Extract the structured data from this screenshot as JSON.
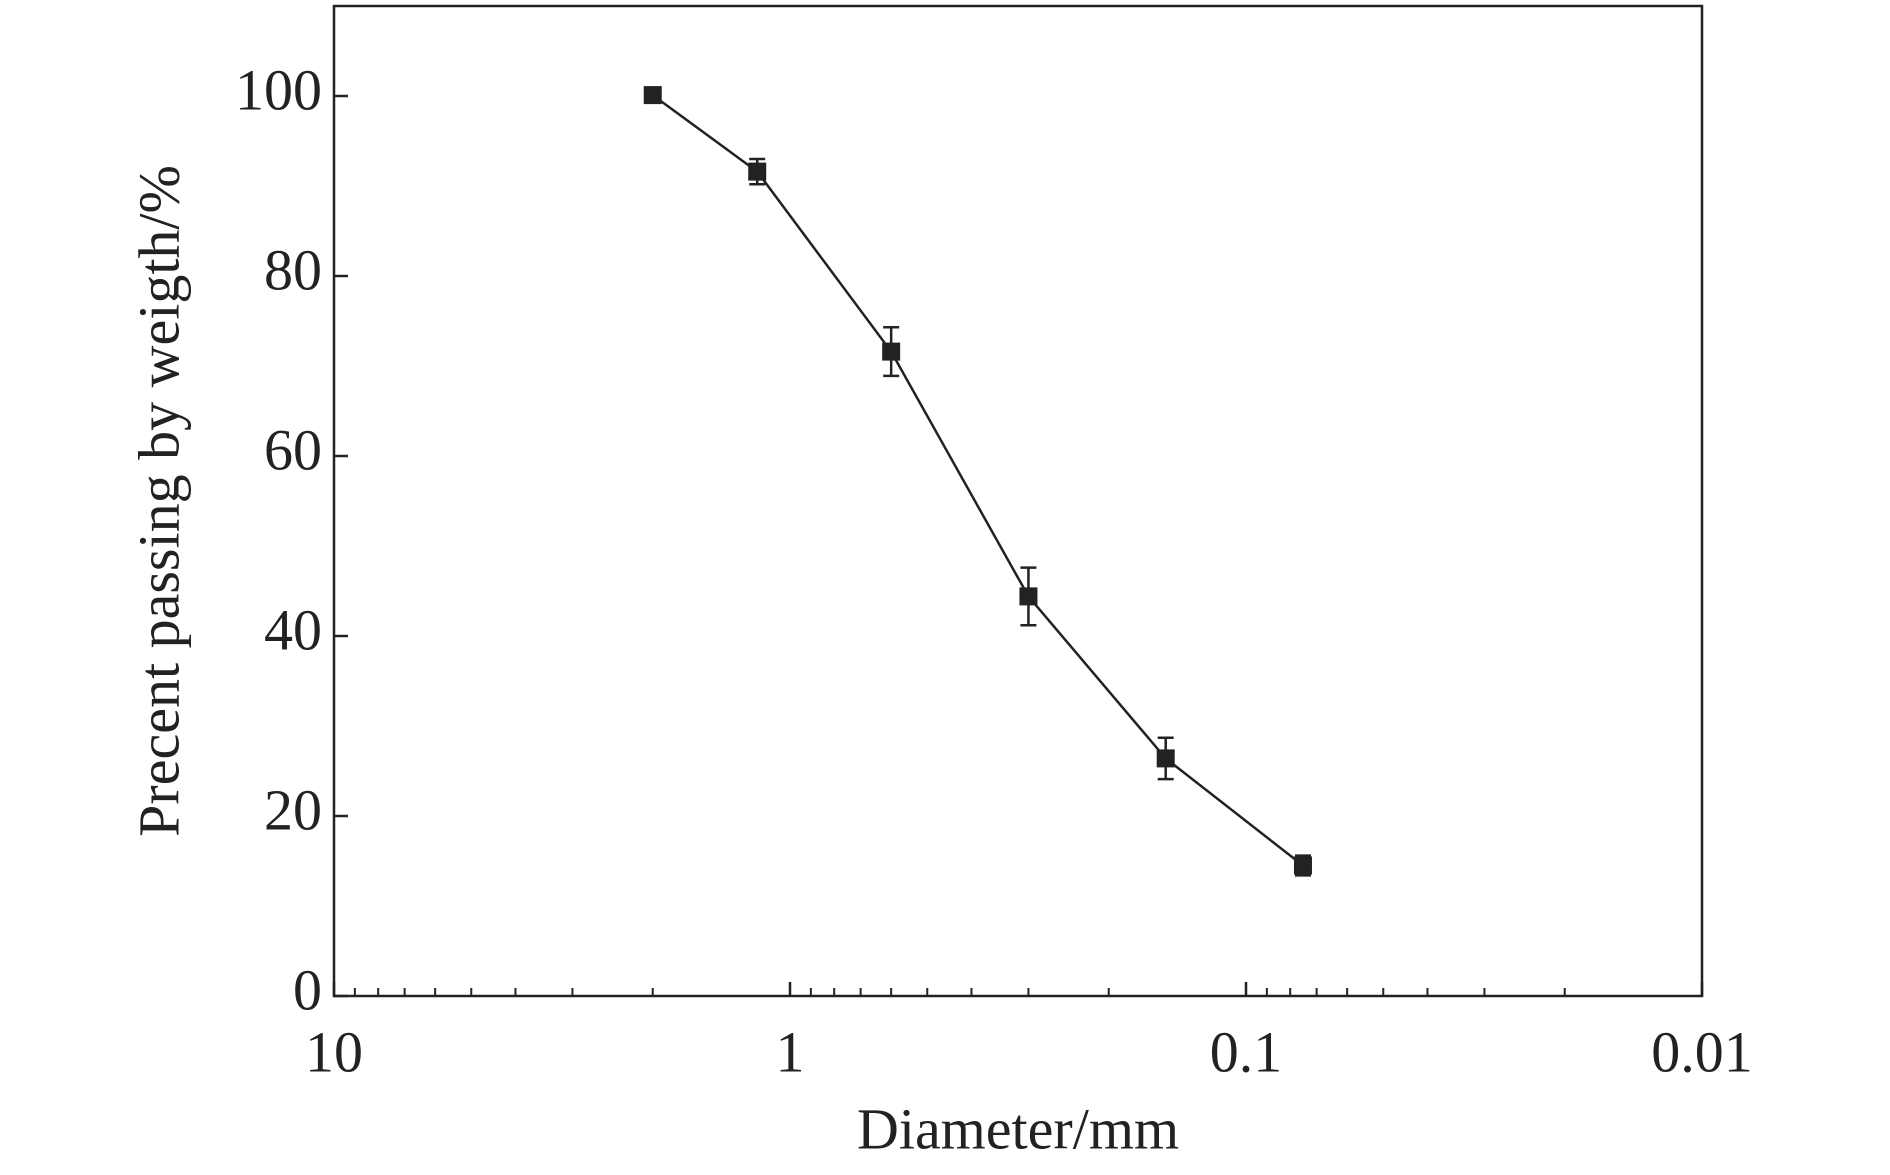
{
  "chart_data": {
    "type": "line",
    "x_label": "Diameter/mm",
    "y_label": "Precent passing by weigth/%",
    "x": [
      2,
      1.18,
      0.6,
      0.3,
      0.15,
      0.075
    ],
    "series": [
      {
        "color": "#222222",
        "values": [
          100.1,
          91.6,
          71.6,
          44.4,
          26.4,
          14.5
        ],
        "errors": [
          0.5,
          1.4,
          2.7,
          3.2,
          2.3,
          1.1
        ]
      }
    ],
    "xlim": [
      10,
      0.01
    ],
    "xscale": "log",
    "xticks": [
      10,
      1,
      0.1,
      0.01
    ],
    "xminorticks": [
      9,
      8,
      7,
      6,
      5,
      4,
      3,
      2,
      0.9,
      0.8,
      0.7,
      0.6,
      0.5,
      0.4,
      0.3,
      0.2,
      0.09,
      0.08,
      0.07,
      0.06,
      0.05,
      0.04,
      0.03,
      0.02
    ],
    "ylim": [
      0,
      110
    ],
    "yticks": [
      0,
      20,
      40,
      60,
      80,
      100
    ]
  }
}
